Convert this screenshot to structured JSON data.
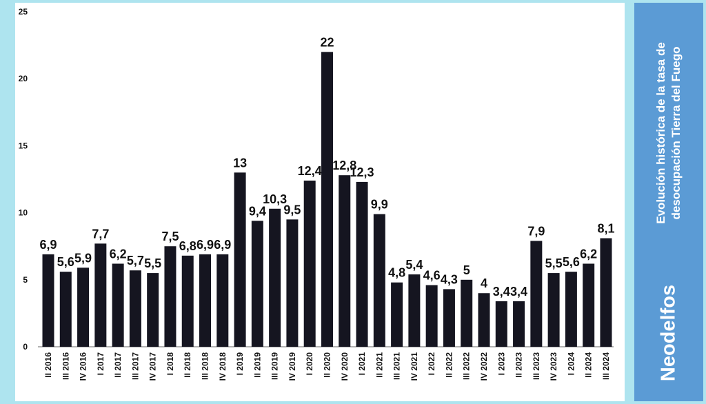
{
  "chart_data": {
    "type": "bar",
    "title": "Evolución histórica de la tasa de desocupación Tierra del Fuego",
    "xlabel": "",
    "ylabel": "",
    "ylim": [
      0,
      25
    ],
    "yticks": [
      0,
      5,
      10,
      15,
      20,
      25
    ],
    "grid": false,
    "categories": [
      "II 2016",
      "III 2016",
      "IV 2016",
      "I 2017",
      "II 2017",
      "III 2017",
      "IV 2017",
      "I 2018",
      "II 2018",
      "III 2018",
      "IV 2018",
      "I 2019",
      "II 2019",
      "III 2019",
      "IV 2019",
      "I 2020",
      "II 2020",
      "IV 2020",
      "I 2021",
      "II 2021",
      "III 2021",
      "IV 2021",
      "I 2022",
      "II 2022",
      "III 2022",
      "IV 2022",
      "I 2023",
      "II 2023",
      "III 2023",
      "IV 2023",
      "I 2024",
      "II 2024",
      "III 2024"
    ],
    "values": [
      6.9,
      5.6,
      5.9,
      7.7,
      6.2,
      5.7,
      5.5,
      7.5,
      6.8,
      6.9,
      6.9,
      13,
      9.4,
      10.3,
      9.5,
      12.4,
      22,
      12.8,
      12.3,
      9.9,
      4.8,
      5.4,
      4.6,
      4.3,
      5,
      4,
      3.4,
      3.4,
      7.9,
      5.5,
      5.6,
      6.2,
      8.1
    ],
    "data_labels": [
      "6,9",
      "5,6",
      "5,9",
      "7,7",
      "6,2",
      "5,7",
      "5,5",
      "7,5",
      "6,8",
      "6,9",
      "6,9",
      "13",
      "9,4",
      "10,3",
      "9,5",
      "12,4",
      "22",
      "12,8",
      "12,3",
      "9,9",
      "4,8",
      "5,4",
      "4,6",
      "4,3",
      "5",
      "4",
      "3,4",
      "3,4",
      "7,9",
      "5,5",
      "5,6",
      "6,2",
      "8,1"
    ],
    "bar_color": "#151520"
  },
  "sidebar": {
    "title_line1": "Evolución histórica de la tasa de",
    "title_line2": "desocupación Tierra del Fuego",
    "brand": "Neodelfos",
    "background": "#5b9bd5"
  },
  "page": {
    "background": "#aee4ef"
  }
}
